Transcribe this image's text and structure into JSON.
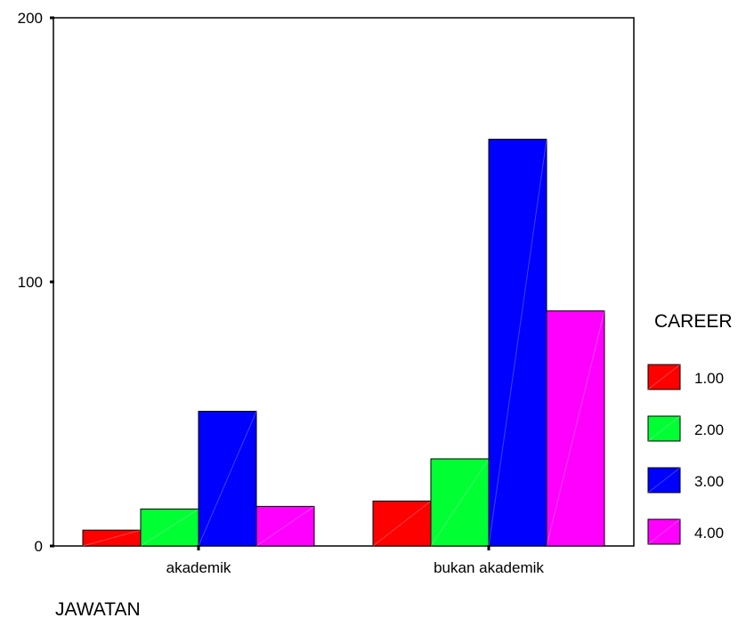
{
  "chart_data": {
    "type": "bar",
    "title": "",
    "xlabel": "JAWATAN",
    "ylabel": "",
    "ylim": [
      0,
      200
    ],
    "yticks": [
      "0",
      "100",
      "200"
    ],
    "categories": [
      "akademik",
      "bukan akademik"
    ],
    "legend_title": "CAREER",
    "legend_position": "right",
    "series": [
      {
        "name": "1.00",
        "color": "#ff0000",
        "values": [
          6,
          17
        ]
      },
      {
        "name": "2.00",
        "color": "#00ff33",
        "values": [
          14,
          33
        ]
      },
      {
        "name": "3.00",
        "color": "#0000ff",
        "values": [
          51,
          154
        ]
      },
      {
        "name": "4.00",
        "color": "#ff00ff",
        "values": [
          15,
          89
        ]
      }
    ],
    "grid": false
  }
}
